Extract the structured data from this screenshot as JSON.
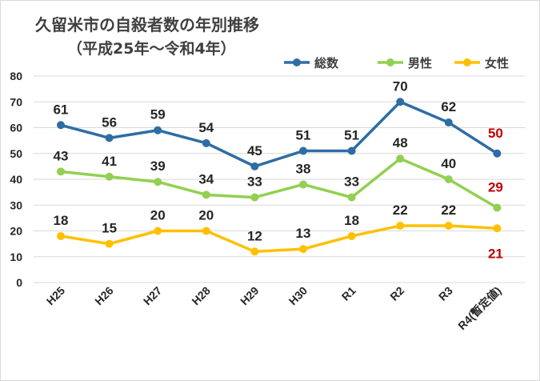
{
  "chart_data": {
    "type": "line",
    "title": "久留米市の自殺者数の年別推移",
    "subtitle": "（平成25年～令和4年）",
    "categories": [
      "H25",
      "H26",
      "H27",
      "H28",
      "H29",
      "H30",
      "R1",
      "R2",
      "R3",
      "R4(暫定値)"
    ],
    "ylim": [
      0,
      80
    ],
    "yticks": [
      "0",
      "10",
      "20",
      "30",
      "40",
      "50",
      "60",
      "70",
      "80"
    ],
    "grid": true,
    "legend_position": "top-right",
    "series": [
      {
        "name": "総数",
        "color": "#2e6da4",
        "values": [
          61,
          56,
          59,
          54,
          45,
          51,
          51,
          70,
          62,
          50
        ]
      },
      {
        "name": "男性",
        "color": "#92d050",
        "values": [
          43,
          41,
          39,
          34,
          33,
          38,
          33,
          48,
          40,
          29
        ]
      },
      {
        "name": "女性",
        "color": "#ffc000",
        "values": [
          18,
          15,
          20,
          20,
          12,
          13,
          18,
          22,
          22,
          21
        ]
      }
    ],
    "last_label_color": "#c00000"
  }
}
